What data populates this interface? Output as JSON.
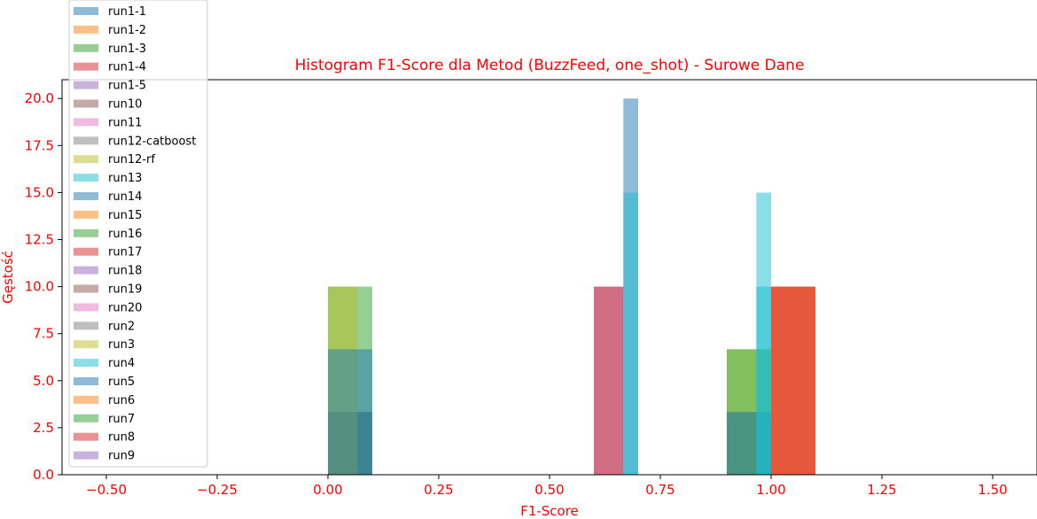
{
  "chart_data": {
    "type": "bar",
    "title": "Histogram F1-Score dla Metod (BuzzFeed, one_shot) - Surowe Dane",
    "xlabel": "F1-Score",
    "ylabel": "Gęstość",
    "xlim": [
      -0.6,
      1.6
    ],
    "ylim": [
      0,
      21
    ],
    "xticks": [
      "−0.50",
      "−0.25",
      "0.00",
      "0.25",
      "0.50",
      "0.75",
      "1.00",
      "1.25",
      "1.50"
    ],
    "yticks": [
      "0.0",
      "2.5",
      "5.0",
      "7.5",
      "10.0",
      "12.5",
      "15.0",
      "17.5",
      "20.0"
    ],
    "grid": false,
    "legend_position": "top-left",
    "label_color": "#ff0000",
    "bar_alpha": 0.5,
    "series": [
      {
        "name": "run1-1",
        "color": "#1f77b4"
      },
      {
        "name": "run1-2",
        "color": "#ff7f0e"
      },
      {
        "name": "run1-3",
        "color": "#2ca02c"
      },
      {
        "name": "run1-4",
        "color": "#d62728"
      },
      {
        "name": "run1-5",
        "color": "#9467bd"
      },
      {
        "name": "run10",
        "color": "#8c564b"
      },
      {
        "name": "run11",
        "color": "#e377c2"
      },
      {
        "name": "run12-catboost",
        "color": "#7f7f7f"
      },
      {
        "name": "run12-rf",
        "color": "#bcbd22"
      },
      {
        "name": "run13",
        "color": "#17becf"
      },
      {
        "name": "run14",
        "color": "#1f77b4"
      },
      {
        "name": "run15",
        "color": "#ff7f0e"
      },
      {
        "name": "run16",
        "color": "#2ca02c"
      },
      {
        "name": "run17",
        "color": "#d62728"
      },
      {
        "name": "run18",
        "color": "#9467bd"
      },
      {
        "name": "run19",
        "color": "#8c564b"
      },
      {
        "name": "run20",
        "color": "#e377c2"
      },
      {
        "name": "run2",
        "color": "#7f7f7f"
      },
      {
        "name": "run3",
        "color": "#bcbd22"
      },
      {
        "name": "run4",
        "color": "#17becf"
      },
      {
        "name": "run5",
        "color": "#1f77b4"
      },
      {
        "name": "run6",
        "color": "#ff7f0e"
      },
      {
        "name": "run7",
        "color": "#2ca02c"
      },
      {
        "name": "run8",
        "color": "#d62728"
      },
      {
        "name": "run9",
        "color": "#9467bd"
      }
    ],
    "bars": [
      {
        "x0": 0.0,
        "x1": 0.1,
        "height": 3.33,
        "color": "#7f7f7f"
      },
      {
        "x0": 0.0,
        "x1": 0.1,
        "height": 3.33,
        "color": "#1f77b4"
      },
      {
        "x0": 0.0,
        "x1": 0.1,
        "height": 3.33,
        "color": "#9467bd"
      },
      {
        "x0": 0.0,
        "x1": 0.1,
        "height": 10.0,
        "color": "#2ca02c"
      },
      {
        "x0": 0.0,
        "x1": 0.0667,
        "height": 10.0,
        "color": "#bcbd22"
      },
      {
        "x0": 0.0,
        "x1": 0.1,
        "height": 6.67,
        "color": "#1f77b4"
      },
      {
        "x0": 0.6,
        "x1": 0.6667,
        "height": 10.0,
        "color": "#9467bd"
      },
      {
        "x0": 0.6,
        "x1": 0.6667,
        "height": 10.0,
        "color": "#d62728"
      },
      {
        "x0": 0.6667,
        "x1": 0.7,
        "height": 20.0,
        "color": "#1f77b4"
      },
      {
        "x0": 0.6667,
        "x1": 0.7,
        "height": 15.0,
        "color": "#17becf"
      },
      {
        "x0": 0.9,
        "x1": 1.0,
        "height": 3.33,
        "color": "#7f7f7f"
      },
      {
        "x0": 0.9,
        "x1": 1.0,
        "height": 6.67,
        "color": "#bcbd22"
      },
      {
        "x0": 0.9,
        "x1": 1.0,
        "height": 6.67,
        "color": "#2ca02c"
      },
      {
        "x0": 0.9,
        "x1": 1.0,
        "height": 3.33,
        "color": "#1f77b4"
      },
      {
        "x0": 0.9667,
        "x1": 1.0,
        "height": 15.0,
        "color": "#17becf"
      },
      {
        "x0": 0.9667,
        "x1": 1.0,
        "height": 10.0,
        "color": "#17becf"
      },
      {
        "x0": 1.0,
        "x1": 1.1,
        "height": 10.0,
        "color": "#d62728"
      },
      {
        "x0": 1.0,
        "x1": 1.1,
        "height": 10.0,
        "color": "#ff7f0e"
      },
      {
        "x0": 1.0,
        "x1": 1.1,
        "height": 10.0,
        "color": "#d62728"
      }
    ]
  }
}
